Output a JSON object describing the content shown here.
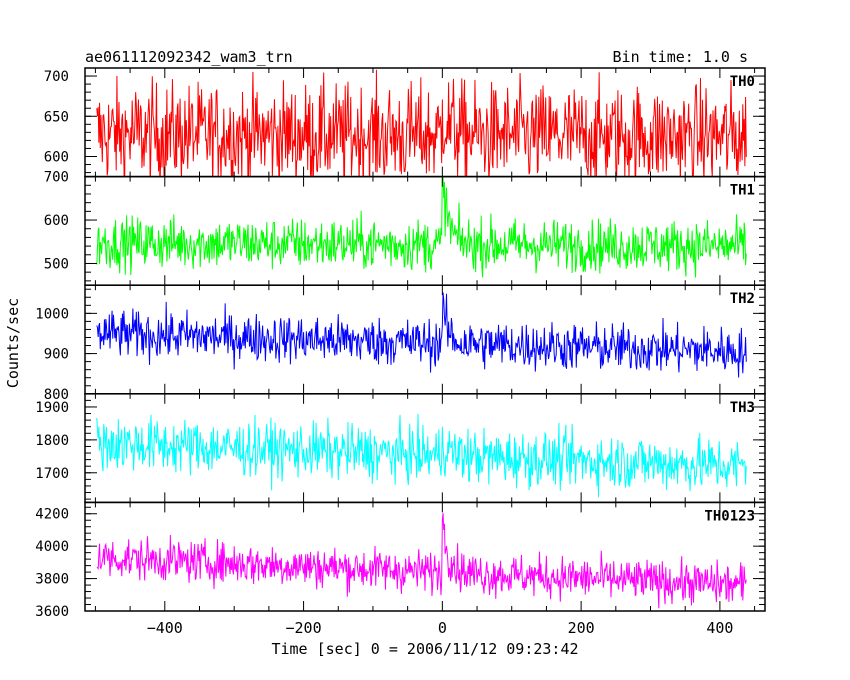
{
  "header": {
    "title": "ae061112092342_wam3_trn",
    "bin_time": "Bin time: 1.0 s"
  },
  "chart_data": {
    "type": "line",
    "ylabel": "Counts/sec",
    "xlabel": "Time [sec] 0 = 2006/11/12 09:23:42",
    "xlim": [
      -515,
      465
    ],
    "x_ticks": [
      -400,
      -200,
      0,
      200,
      400
    ],
    "x_tick_labels": [
      "−400",
      "−200",
      "0",
      "200",
      "400"
    ],
    "x_data_range": [
      -498,
      438
    ],
    "bin_time_s": 1.0,
    "panels": [
      {
        "name": "TH0",
        "color": "#ff0000",
        "ylim": [
          575,
          710
        ],
        "ticks": [
          600,
          650,
          700
        ],
        "tick_labels": [
          "600",
          "650",
          "700"
        ],
        "base": 628,
        "trend": -3,
        "noise": 32,
        "burst_peak": 30,
        "burst_decay": 12
      },
      {
        "name": "TH1",
        "color": "#00ff00",
        "ylim": [
          450,
          700
        ],
        "ticks": [
          500,
          600,
          700
        ],
        "tick_labels": [
          "500",
          "600",
          "700"
        ],
        "base": 548,
        "trend": -8,
        "noise": 30,
        "burst_peak": 150,
        "burst_decay": 9
      },
      {
        "name": "TH2",
        "color": "#0000ff",
        "ylim": [
          800,
          1070
        ],
        "ticks": [
          800,
          900,
          1000
        ],
        "tick_labels": [
          "800",
          "900",
          "1000"
        ],
        "base": 950,
        "trend": -45,
        "noise": 30,
        "burst_peak": 90,
        "burst_decay": 8
      },
      {
        "name": "TH3",
        "color": "#00ffff",
        "ylim": [
          1610,
          1940
        ],
        "ticks": [
          1700,
          1800,
          1900
        ],
        "tick_labels": [
          "1700",
          "1800",
          "1900"
        ],
        "base": 1790,
        "trend": -70,
        "noise": 42,
        "burst_peak": 40,
        "burst_decay": 10
      },
      {
        "name": "TH0123",
        "color": "#ff00ff",
        "ylim": [
          3600,
          4270
        ],
        "ticks": [
          3600,
          3800,
          4000,
          4200
        ],
        "tick_labels": [
          "3600",
          "3800",
          "4000",
          "4200"
        ],
        "base": 3930,
        "trend": -170,
        "noise": 65,
        "burst_peak": 330,
        "burst_decay": 9
      }
    ]
  }
}
